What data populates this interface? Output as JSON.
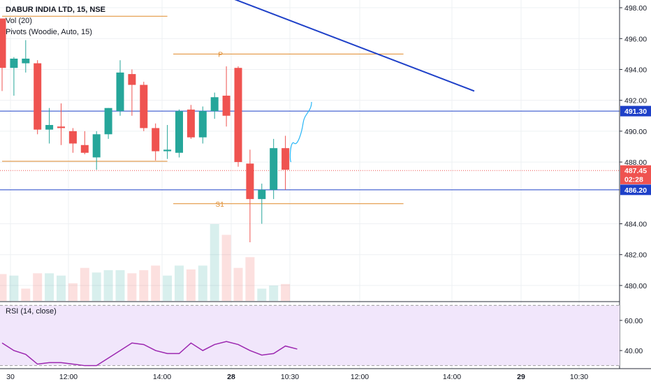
{
  "symbol": {
    "title": "DABUR INDIA LTD, 15, NSE"
  },
  "legend": {
    "vol": "Vol (20)",
    "pivots": "Pivots (Woodie, Auto, 15)",
    "rsi": "RSI (14, close)"
  },
  "colors": {
    "up": "#26a69a",
    "down": "#ef5350",
    "blue": "#1e40c8",
    "pivot": "#e08a2a",
    "rsi": "#9c27b0",
    "rsi_band": "#f1e6fb"
  },
  "chart_data": [
    {
      "type": "candlestick",
      "title": "DABUR INDIA LTD, 15, NSE",
      "y_ticks": [
        "498.00",
        "496.00",
        "494.00",
        "492.00",
        "490.00",
        "488.00",
        "484.00",
        "482.00",
        "480.00"
      ],
      "x_ticks": [
        "30",
        "12:00",
        "14:00",
        "28",
        "10:30",
        "12:00",
        "14:00",
        "29",
        "10:30"
      ],
      "ylim": [
        479,
        498.5
      ],
      "price_labels": [
        {
          "text": "491.30",
          "value": 491.3,
          "color": "#1e40c8"
        },
        {
          "text": "487.45",
          "value": 487.45,
          "color": "#ef5350"
        },
        {
          "text": "02:28",
          "value": 486.9,
          "color": "#ef5350"
        },
        {
          "text": "486.20",
          "value": 486.2,
          "color": "#1e40c8"
        }
      ],
      "pivot_labels": [
        {
          "text": "P",
          "value": 495.0
        },
        {
          "text": "S1",
          "value": 485.3
        }
      ],
      "pivot_lines": [
        {
          "value": 497.45,
          "from": 0,
          "to": 14
        },
        {
          "value": 488.05,
          "from": 0,
          "to": 14
        },
        {
          "value": 495.0,
          "from": 14.5,
          "to": 34
        },
        {
          "value": 485.3,
          "from": 14.5,
          "to": 34
        }
      ],
      "horizontal_lines": [
        491.3,
        486.2
      ],
      "trend_line": {
        "x1": 19.5,
        "y1": 498.6,
        "x2": 40,
        "y2": 492.6
      },
      "candles": [
        {
          "o": 497.3,
          "h": 497.3,
          "l": 492.6,
          "c": 494.1
        },
        {
          "o": 494.1,
          "h": 494.8,
          "l": 492.3,
          "c": 494.7
        },
        {
          "o": 494.4,
          "h": 495.9,
          "l": 493.8,
          "c": 494.7
        },
        {
          "o": 494.4,
          "h": 494.6,
          "l": 489.8,
          "c": 490.1
        },
        {
          "o": 490.1,
          "h": 491.5,
          "l": 489.2,
          "c": 490.4
        },
        {
          "o": 490.3,
          "h": 491.8,
          "l": 489.1,
          "c": 490.2
        },
        {
          "o": 490.0,
          "h": 490.2,
          "l": 488.6,
          "c": 489.2
        },
        {
          "o": 489.1,
          "h": 490.0,
          "l": 488.5,
          "c": 488.6
        },
        {
          "o": 488.3,
          "h": 490.0,
          "l": 487.5,
          "c": 489.8
        },
        {
          "o": 489.8,
          "h": 491.5,
          "l": 489.5,
          "c": 491.5
        },
        {
          "o": 491.3,
          "h": 494.6,
          "l": 491.0,
          "c": 493.8
        },
        {
          "o": 493.7,
          "h": 494.0,
          "l": 491.0,
          "c": 493.0
        },
        {
          "o": 493.0,
          "h": 493.2,
          "l": 490.0,
          "c": 490.2
        },
        {
          "o": 490.2,
          "h": 490.5,
          "l": 488.1,
          "c": 488.7
        },
        {
          "o": 488.7,
          "h": 490.4,
          "l": 488.2,
          "c": 488.8
        },
        {
          "o": 488.6,
          "h": 491.4,
          "l": 488.3,
          "c": 491.3
        },
        {
          "o": 491.4,
          "h": 491.7,
          "l": 489.5,
          "c": 489.6
        },
        {
          "o": 489.6,
          "h": 491.6,
          "l": 489.2,
          "c": 491.3
        },
        {
          "o": 491.3,
          "h": 492.5,
          "l": 490.8,
          "c": 492.2
        },
        {
          "o": 492.3,
          "h": 494.2,
          "l": 490.3,
          "c": 491.0
        },
        {
          "o": 494.1,
          "h": 494.2,
          "l": 487.7,
          "c": 488.0
        },
        {
          "o": 487.9,
          "h": 488.8,
          "l": 482.8,
          "c": 485.6
        },
        {
          "o": 485.6,
          "h": 486.6,
          "l": 484.0,
          "c": 486.2
        },
        {
          "o": 486.2,
          "h": 489.5,
          "l": 485.6,
          "c": 488.9
        },
        {
          "o": 488.9,
          "h": 489.7,
          "l": 486.2,
          "c": 487.5
        }
      ],
      "volume": [
        {
          "v": 0.35,
          "up": false
        },
        {
          "v": 0.33,
          "up": true
        },
        {
          "v": 0.16,
          "up": false
        },
        {
          "v": 0.36,
          "up": false
        },
        {
          "v": 0.36,
          "up": true
        },
        {
          "v": 0.33,
          "up": true
        },
        {
          "v": 0.23,
          "up": false
        },
        {
          "v": 0.43,
          "up": false
        },
        {
          "v": 0.37,
          "up": true
        },
        {
          "v": 0.4,
          "up": true
        },
        {
          "v": 0.4,
          "up": true
        },
        {
          "v": 0.36,
          "up": false
        },
        {
          "v": 0.4,
          "up": false
        },
        {
          "v": 0.46,
          "up": false
        },
        {
          "v": 0.33,
          "up": true
        },
        {
          "v": 0.46,
          "up": true
        },
        {
          "v": 0.41,
          "up": false
        },
        {
          "v": 0.46,
          "up": true
        },
        {
          "v": 1.0,
          "up": true
        },
        {
          "v": 0.86,
          "up": false
        },
        {
          "v": 0.43,
          "up": false
        },
        {
          "v": 0.57,
          "up": false
        },
        {
          "v": 0.16,
          "up": true
        },
        {
          "v": 0.2,
          "up": true
        },
        {
          "v": 0.22,
          "up": false
        }
      ]
    },
    {
      "type": "line",
      "title": "RSI (14, close)",
      "y_ticks": [
        "60.00",
        "40.00"
      ],
      "ylim": [
        28,
        72
      ],
      "bands": [
        30,
        70
      ],
      "values": [
        45,
        40,
        37.5,
        31,
        32,
        32,
        31,
        30,
        30,
        35,
        40,
        45,
        44,
        40,
        38,
        38,
        45,
        40,
        44,
        46,
        44,
        40,
        37,
        38,
        43,
        41
      ]
    }
  ]
}
